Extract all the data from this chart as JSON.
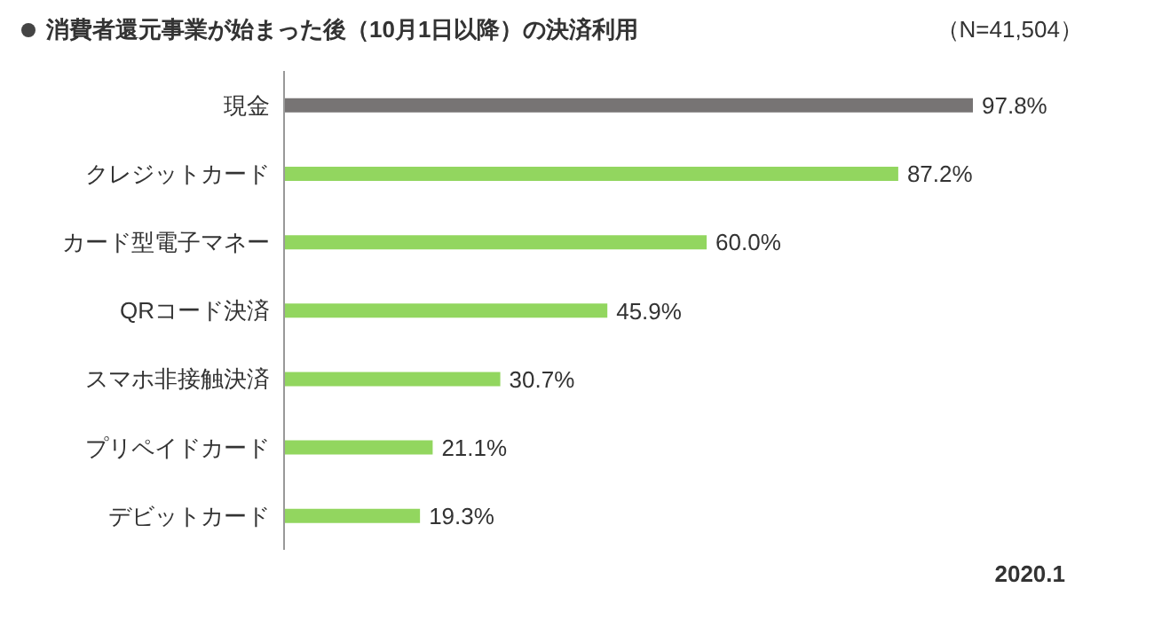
{
  "chart_data": {
    "type": "bar",
    "orientation": "horizontal",
    "title": "消費者還元事業が始まった後（10月1日以降）の決済利用",
    "annotations": [
      "（N=41,504）",
      "2020.1"
    ],
    "categories": [
      "現金",
      "クレジットカード",
      "カード型電子マネー",
      "QRコード決済",
      "スマホ非接触決済",
      "プリペイドカード",
      "デビットカード"
    ],
    "values": [
      97.8,
      87.2,
      60.0,
      45.9,
      30.7,
      21.1,
      19.3
    ],
    "value_labels": [
      "97.8%",
      "87.2%",
      "60.0%",
      "45.9%",
      "30.7%",
      "21.1%",
      "19.3%"
    ],
    "colors": [
      "#777474",
      "#92d65f",
      "#92d65f",
      "#92d65f",
      "#92d65f",
      "#92d65f",
      "#92d65f"
    ]
  }
}
